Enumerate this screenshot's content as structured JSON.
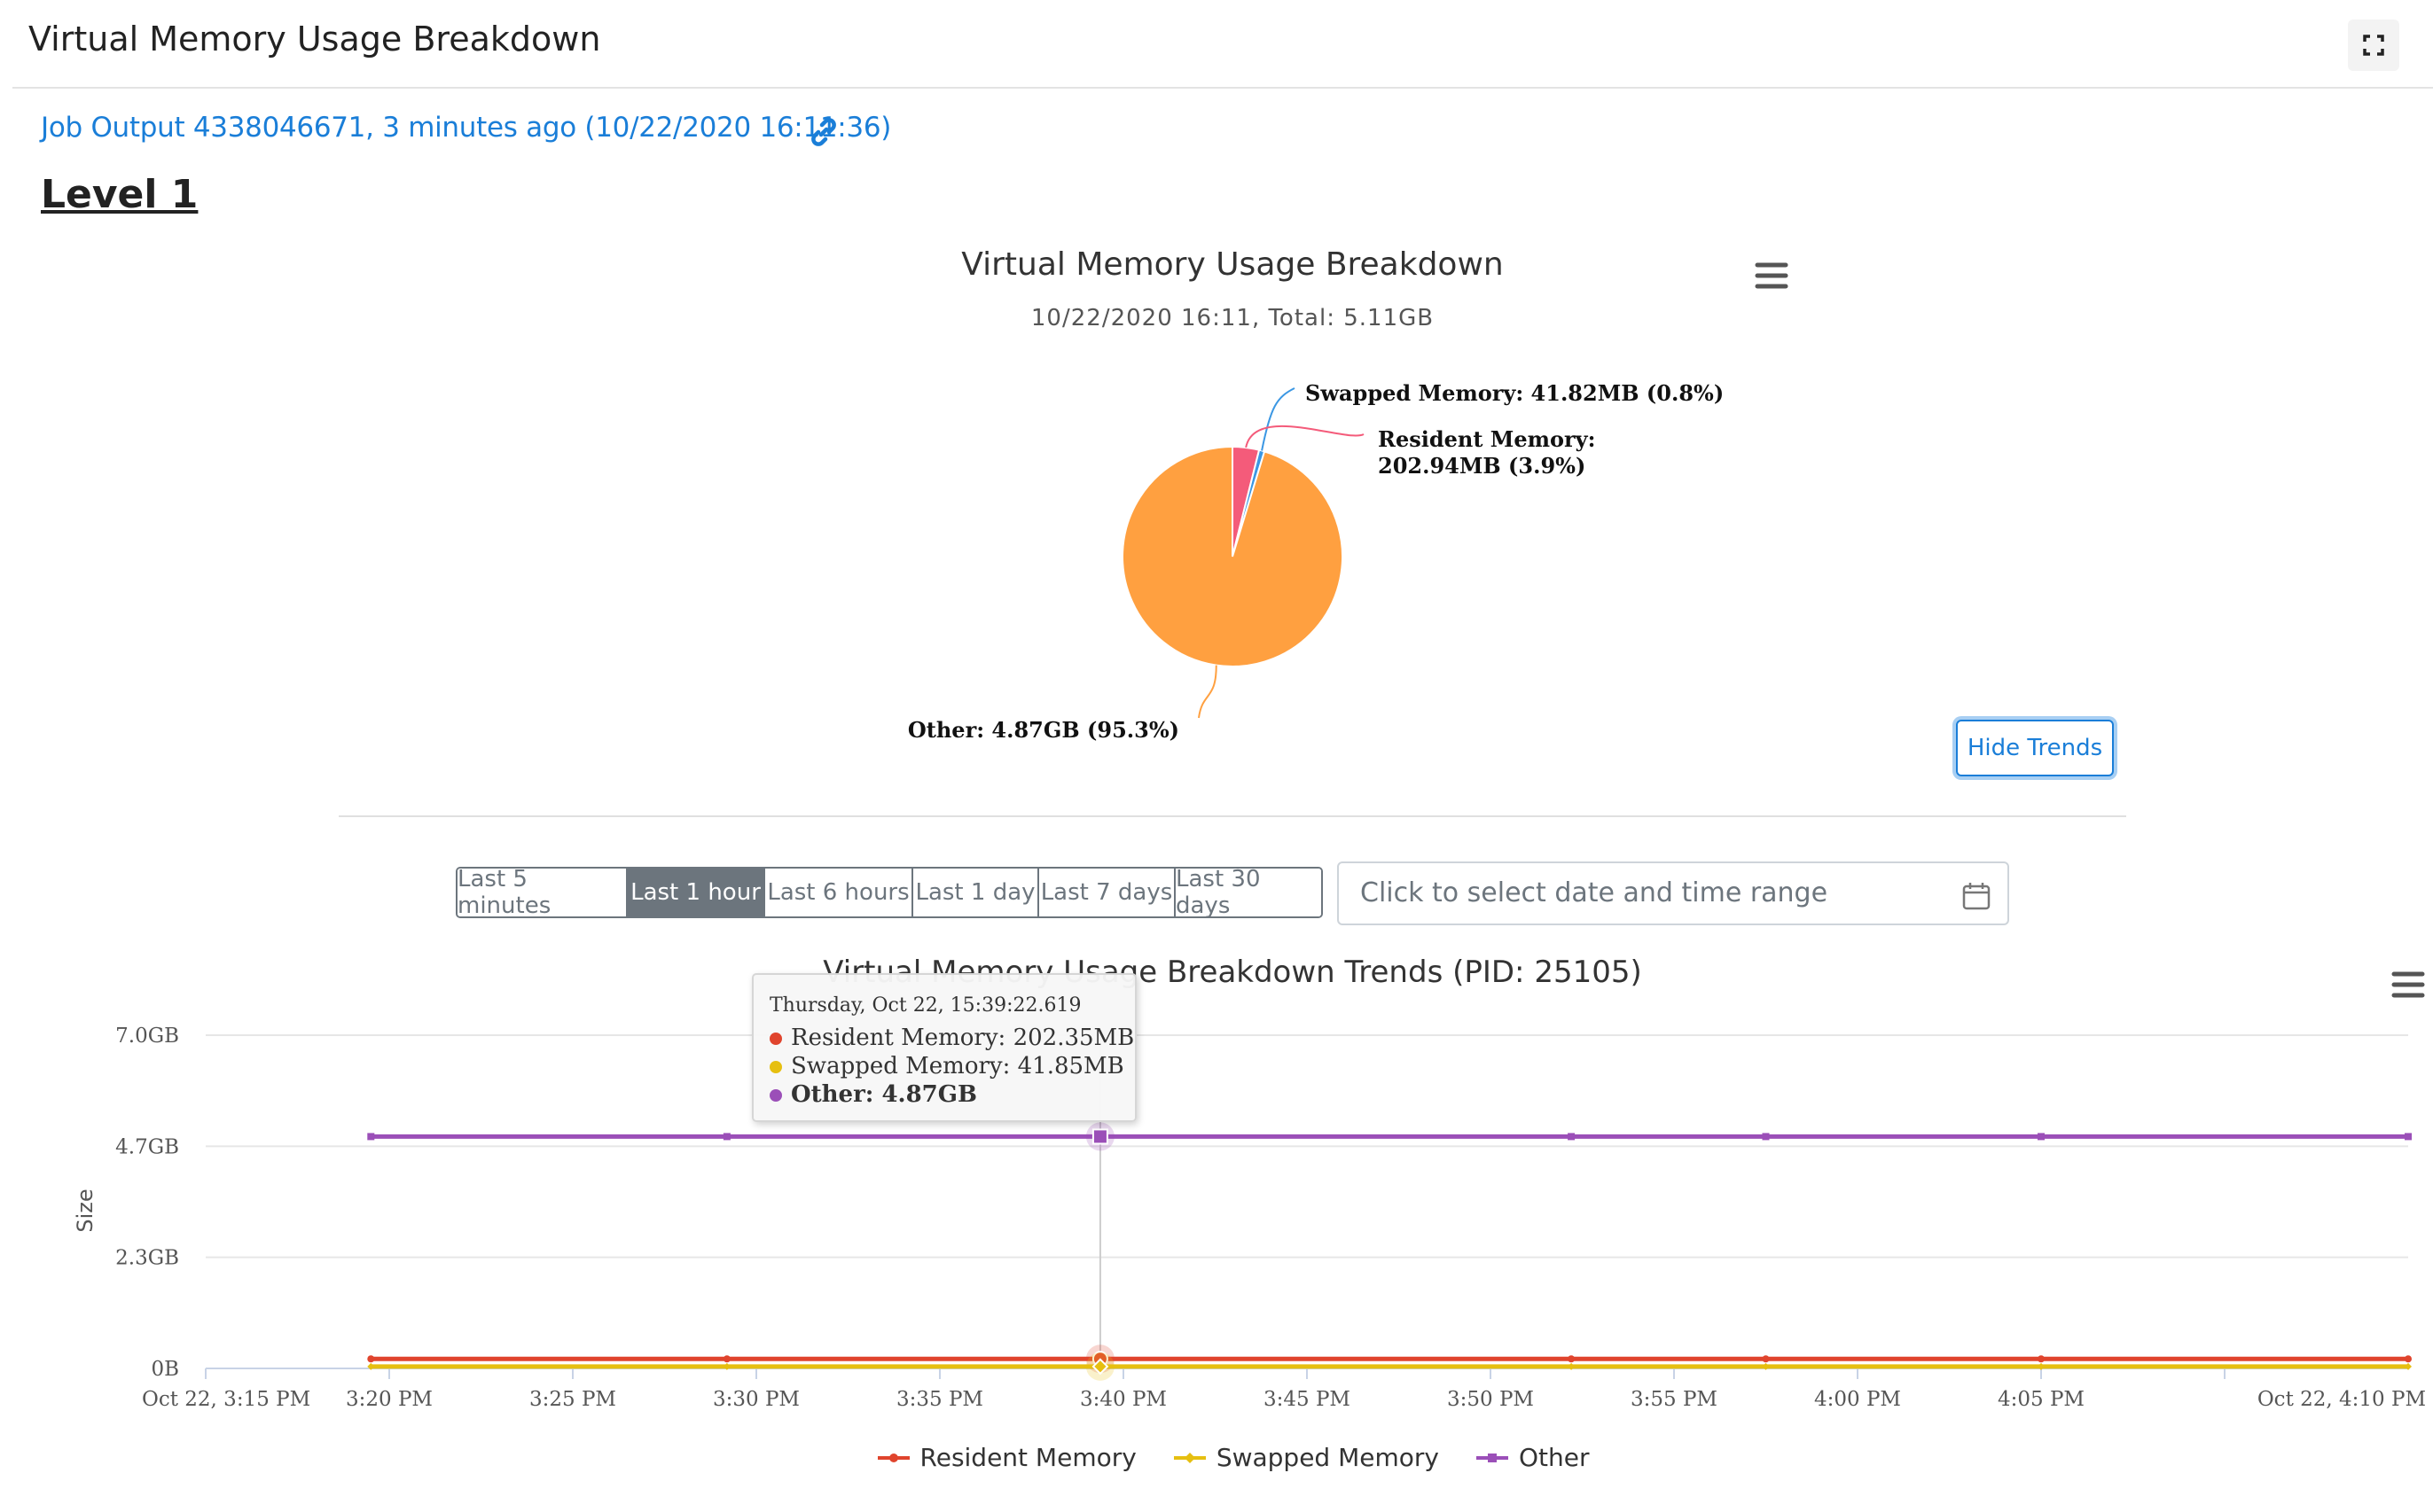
{
  "panel": {
    "title": "Virtual Memory Usage Breakdown",
    "expand_icon": "expand-icon"
  },
  "job_link": {
    "text": "Job Output 4338046671, 3 minutes ago (10/22/2020 16:11:36)",
    "icon": "link-icon",
    "color": "#1a7ed8"
  },
  "level_heading": "Level 1",
  "hide_trends_label": "Hide Trends",
  "range_buttons": [
    "Last 5 minutes",
    "Last 1 hour",
    "Last 6 hours",
    "Last 1 day",
    "Last 7 days",
    "Last 30 days"
  ],
  "active_range": "Last 1 hour",
  "date_range": {
    "placeholder": "Click to select date and time range",
    "icon": "calendar-icon"
  },
  "menu_icon": "hamburger-menu-icon",
  "tooltip": {
    "header": "Thursday, Oct 22, 15:39:22.619",
    "rows": [
      {
        "label": "Resident Memory: 202.35MB",
        "color": "#e0442d"
      },
      {
        "label": "Swapped Memory: 41.85MB",
        "color": "#e6bf10"
      },
      {
        "label": "Other: 4.87GB",
        "color": "#9b4fb8"
      }
    ]
  },
  "chart_data": [
    {
      "type": "pie",
      "title": "Virtual Memory Usage Breakdown",
      "subtitle": "10/22/2020 16:11, Total: 5.11GB",
      "slices": [
        {
          "label": "Swapped Memory: 41.82MB (0.8%)",
          "value": 0.8,
          "color": "#3b97e3"
        },
        {
          "label": "Resident Memory: 202.94MB (3.9%)",
          "label_lines": [
            "Resident Memory:",
            "202.94MB (3.9%)"
          ],
          "value": 3.9,
          "color": "#f45b7a"
        },
        {
          "label": "Other: 4.87GB (95.3%)",
          "value": 95.3,
          "color": "#ffa040"
        }
      ]
    },
    {
      "type": "line",
      "title": "Virtual Memory Usage Breakdown Trends (PID: 25105)",
      "ylabel": "Size",
      "xlabel": "",
      "y_ticks": [
        "0B",
        "2.3GB",
        "4.7GB",
        "7.0GB"
      ],
      "ylim_gb": [
        0,
        7.0
      ],
      "x_ticks": [
        "Oct 22, 3:15 PM",
        "3:20 PM",
        "3:25 PM",
        "3:30 PM",
        "3:35 PM",
        "3:40 PM",
        "3:45 PM",
        "3:50 PM",
        "3:55 PM",
        "4:00 PM",
        "4:05 PM",
        "Oct 22, 4:10 PM"
      ],
      "xlim_min": [
        15,
        75
      ],
      "x_minutes": [
        19.5,
        29.2,
        39.37,
        52.2,
        57.5,
        65.0,
        75.0
      ],
      "series": [
        {
          "name": "Resident Memory",
          "color": "#e0442d",
          "values_gb": [
            0.2,
            0.2,
            0.2,
            0.2,
            0.2,
            0.2,
            0.2
          ]
        },
        {
          "name": "Swapped Memory",
          "color": "#e6bf10",
          "values_gb": [
            0.04,
            0.04,
            0.04,
            0.04,
            0.04,
            0.04,
            0.04
          ]
        },
        {
          "name": "Other",
          "color": "#9b4fb8",
          "values_gb": [
            4.87,
            4.87,
            4.87,
            4.87,
            4.87,
            4.87,
            4.87
          ]
        }
      ],
      "hover_index": 2,
      "legend": [
        "Resident Memory",
        "Swapped Memory",
        "Other"
      ],
      "legend_position": "bottom",
      "grid": true
    }
  ]
}
